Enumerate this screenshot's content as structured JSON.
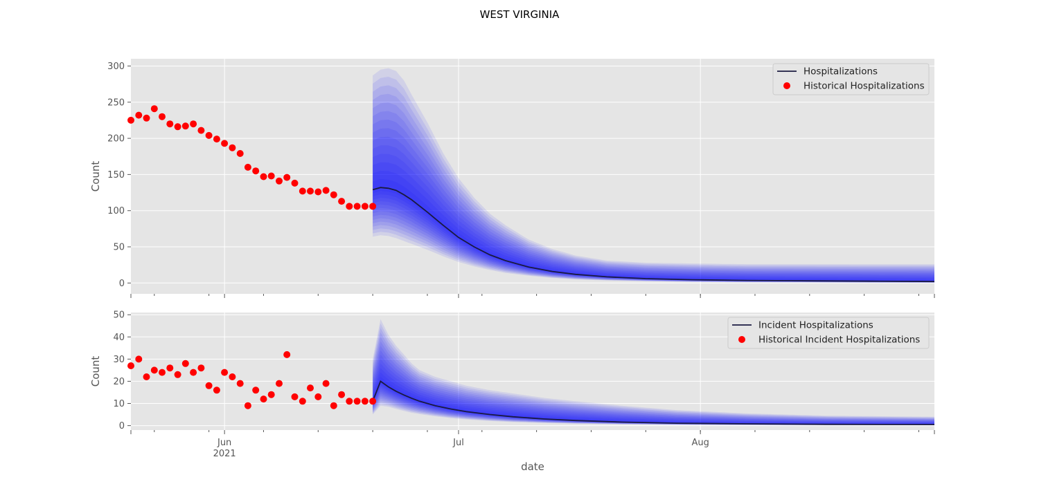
{
  "figure": {
    "title": "WEST VIRGINIA",
    "xlabel": "date"
  },
  "colors": {
    "panel_bg": "#e5e5e5",
    "grid": "#ffffff",
    "band": "#0000ff",
    "median": "#1a1a40",
    "history": "#ff0000",
    "tick": "#555555"
  },
  "chart_data": [
    {
      "type": "line",
      "ylabel": "Count",
      "ylim": [
        -15,
        310
      ],
      "yticks": [
        "0",
        "50",
        "100",
        "150",
        "200",
        "250",
        "300"
      ],
      "ytick_values": [
        0,
        50,
        100,
        150,
        200,
        250,
        300
      ],
      "xlim": [
        "2021-05-20",
        "2021-08-31"
      ],
      "grid": true,
      "legend_position": "upper right",
      "legend": [
        "Hospitalizations",
        "Historical Hospitalizations"
      ],
      "historical": {
        "name": "Historical Hospitalizations",
        "x": [
          "2021-05-20",
          "2021-05-21",
          "2021-05-22",
          "2021-05-23",
          "2021-05-24",
          "2021-05-25",
          "2021-05-26",
          "2021-05-27",
          "2021-05-28",
          "2021-05-29",
          "2021-05-30",
          "2021-05-31",
          "2021-06-01",
          "2021-06-02",
          "2021-06-03",
          "2021-06-04",
          "2021-06-05",
          "2021-06-06",
          "2021-06-07",
          "2021-06-08",
          "2021-06-09",
          "2021-06-10",
          "2021-06-11",
          "2021-06-12",
          "2021-06-13",
          "2021-06-14",
          "2021-06-15",
          "2021-06-16",
          "2021-06-17",
          "2021-06-18",
          "2021-06-19",
          "2021-06-20"
        ],
        "values": [
          225,
          232,
          228,
          241,
          230,
          220,
          216,
          217,
          220,
          211,
          204,
          199,
          193,
          187,
          179,
          160,
          155,
          147,
          148,
          141,
          146,
          138,
          127,
          127,
          126,
          128,
          122,
          113,
          106,
          106,
          106,
          106
        ]
      },
      "forecast": {
        "name": "Hospitalizations",
        "x": [
          "2021-06-20",
          "2021-06-21",
          "2021-06-22",
          "2021-06-23",
          "2021-06-24",
          "2021-06-25",
          "2021-06-27",
          "2021-06-29",
          "2021-07-01",
          "2021-07-03",
          "2021-07-05",
          "2021-07-07",
          "2021-07-10",
          "2021-07-13",
          "2021-07-16",
          "2021-07-20",
          "2021-07-25",
          "2021-07-31",
          "2021-08-07",
          "2021-08-15",
          "2021-08-23",
          "2021-08-31"
        ],
        "median": [
          129,
          132,
          131,
          128,
          122,
          115,
          98,
          80,
          63,
          50,
          39,
          31,
          22,
          16,
          12,
          8.5,
          6,
          4.5,
          3.5,
          3,
          2.5,
          2
        ],
        "lower": [
          64,
          66,
          65,
          62,
          58,
          54,
          46,
          37,
          29,
          23,
          18,
          14,
          10,
          7,
          5,
          3.5,
          2.5,
          1.5,
          1,
          0.8,
          0.5,
          0.4
        ],
        "upper": [
          287,
          295,
          297,
          293,
          280,
          260,
          222,
          180,
          145,
          118,
          96,
          80,
          60,
          47,
          38,
          31,
          28,
          27,
          26,
          26,
          26,
          26
        ]
      }
    },
    {
      "type": "line",
      "ylabel": "Count",
      "ylim": [
        -2,
        51
      ],
      "yticks": [
        "0",
        "10",
        "20",
        "30",
        "40",
        "50"
      ],
      "ytick_values": [
        0,
        10,
        20,
        30,
        40,
        50
      ],
      "xlim": [
        "2021-05-20",
        "2021-08-31"
      ],
      "xticks": [
        "Jun\n2021",
        "Jul",
        "Aug"
      ],
      "xtick_dates": [
        "2021-06-01",
        "2021-07-01",
        "2021-08-01"
      ],
      "grid": true,
      "legend_position": "upper right",
      "legend": [
        "Incident Hospitalizations",
        "Historical Incident Hospitalizations"
      ],
      "historical": {
        "name": "Historical Incident Hospitalizations",
        "x": [
          "2021-05-20",
          "2021-05-21",
          "2021-05-22",
          "2021-05-23",
          "2021-05-24",
          "2021-05-25",
          "2021-05-26",
          "2021-05-27",
          "2021-05-28",
          "2021-05-29",
          "2021-05-30",
          "2021-05-31",
          "2021-06-01",
          "2021-06-02",
          "2021-06-03",
          "2021-06-04",
          "2021-06-05",
          "2021-06-06",
          "2021-06-07",
          "2021-06-08",
          "2021-06-09",
          "2021-06-10",
          "2021-06-11",
          "2021-06-12",
          "2021-06-13",
          "2021-06-14",
          "2021-06-15",
          "2021-06-16",
          "2021-06-17",
          "2021-06-18",
          "2021-06-19",
          "2021-06-20"
        ],
        "values": [
          27,
          30,
          22,
          25,
          24,
          26,
          23,
          28,
          24,
          26,
          18,
          16,
          24,
          22,
          19,
          9,
          16,
          12,
          14,
          19,
          32,
          13,
          11,
          17,
          13,
          19,
          9,
          14,
          11,
          11,
          11,
          11
        ]
      },
      "forecast": {
        "name": "Incident Hospitalizations",
        "x": [
          "2021-06-20",
          "2021-06-21",
          "2021-06-22",
          "2021-06-23",
          "2021-06-24",
          "2021-06-25",
          "2021-06-26",
          "2021-06-28",
          "2021-06-30",
          "2021-07-02",
          "2021-07-05",
          "2021-07-08",
          "2021-07-12",
          "2021-07-16",
          "2021-07-22",
          "2021-07-29",
          "2021-08-07",
          "2021-08-17",
          "2021-08-31"
        ],
        "median": [
          11,
          20,
          17.5,
          15.5,
          13.8,
          12.3,
          11,
          9,
          7.5,
          6.3,
          5,
          4,
          3,
          2.3,
          1.6,
          1.1,
          0.8,
          0.6,
          0.5
        ],
        "lower": [
          5,
          9,
          8.5,
          7.5,
          6.6,
          5.8,
          5.2,
          4.2,
          3.4,
          2.8,
          2.1,
          1.6,
          1.2,
          0.9,
          0.6,
          0.4,
          0.3,
          0.2,
          0.2
        ],
        "upper": [
          30,
          48,
          41,
          36,
          32,
          28,
          25,
          22,
          20,
          18,
          16,
          14.5,
          12.5,
          11,
          9,
          7,
          5.5,
          4.5,
          4
        ]
      }
    }
  ]
}
